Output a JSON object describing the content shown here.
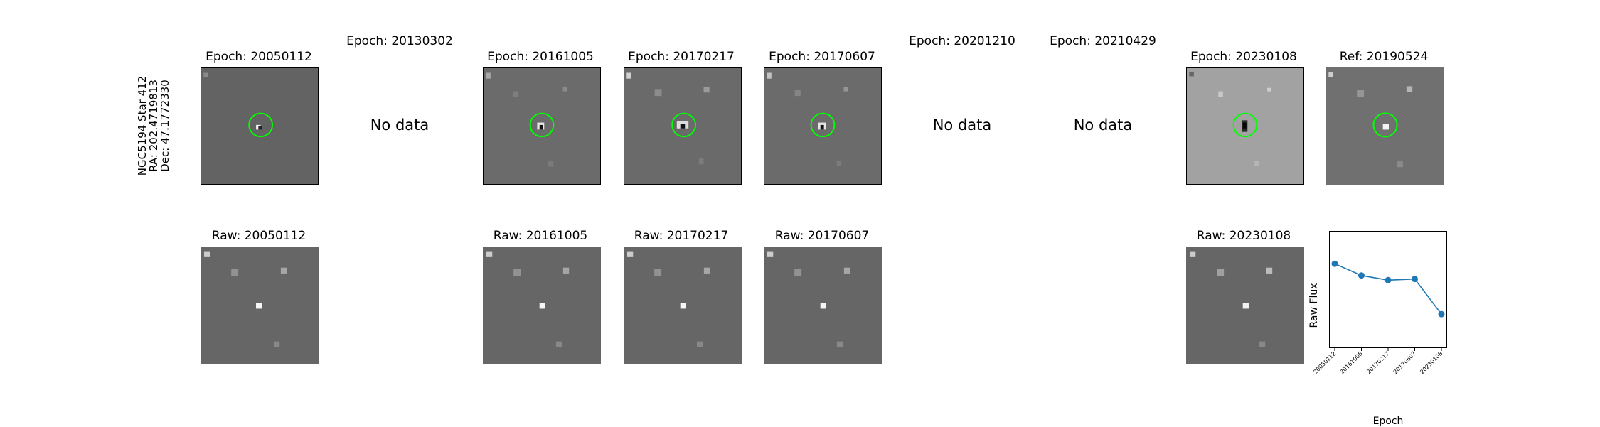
{
  "star": {
    "line1": "NGC5194 Star 412",
    "line2": "RA: 202.4719813",
    "line3": "Dec: 47.1772330"
  },
  "epochs": [
    {
      "title": "Epoch: 20050112",
      "has_data": true,
      "raw_title": "Raw: 20050112",
      "bg": "#636363"
    },
    {
      "title": "Epoch: 20130302",
      "has_data": false,
      "message": "No data"
    },
    {
      "title": "Epoch: 20161005",
      "has_data": true,
      "raw_title": "Raw: 20161005",
      "bg": "#6b6b6b"
    },
    {
      "title": "Epoch: 20170217",
      "has_data": true,
      "raw_title": "Raw: 20170217",
      "bg": "#6a6a6a"
    },
    {
      "title": "Epoch: 20170607",
      "has_data": true,
      "raw_title": "Raw: 20170607",
      "bg": "#6b6b6b"
    },
    {
      "title": "Epoch: 20201210",
      "has_data": false,
      "message": "No data"
    },
    {
      "title": "Epoch: 20210429",
      "has_data": false,
      "message": "No data"
    },
    {
      "title": "Epoch: 20230108",
      "has_data": true,
      "raw_title": "Raw: 20230108",
      "bg": "#a2a2a2"
    }
  ],
  "reference": {
    "title": "Ref: 20190524",
    "bg": "#707070"
  },
  "colors": {
    "circle": "#00ff00",
    "line": "#1f77b4",
    "raw_bg": "#666666"
  },
  "chart_data": {
    "type": "line",
    "x": [
      "20050112",
      "20161005",
      "20170217",
      "20170607",
      "20230108"
    ],
    "values": [
      0.72,
      0.62,
      0.58,
      0.59,
      0.29
    ],
    "ylim": [
      0,
      1
    ],
    "xlabel": "Epoch",
    "ylabel": "Raw Flux",
    "title": ""
  }
}
